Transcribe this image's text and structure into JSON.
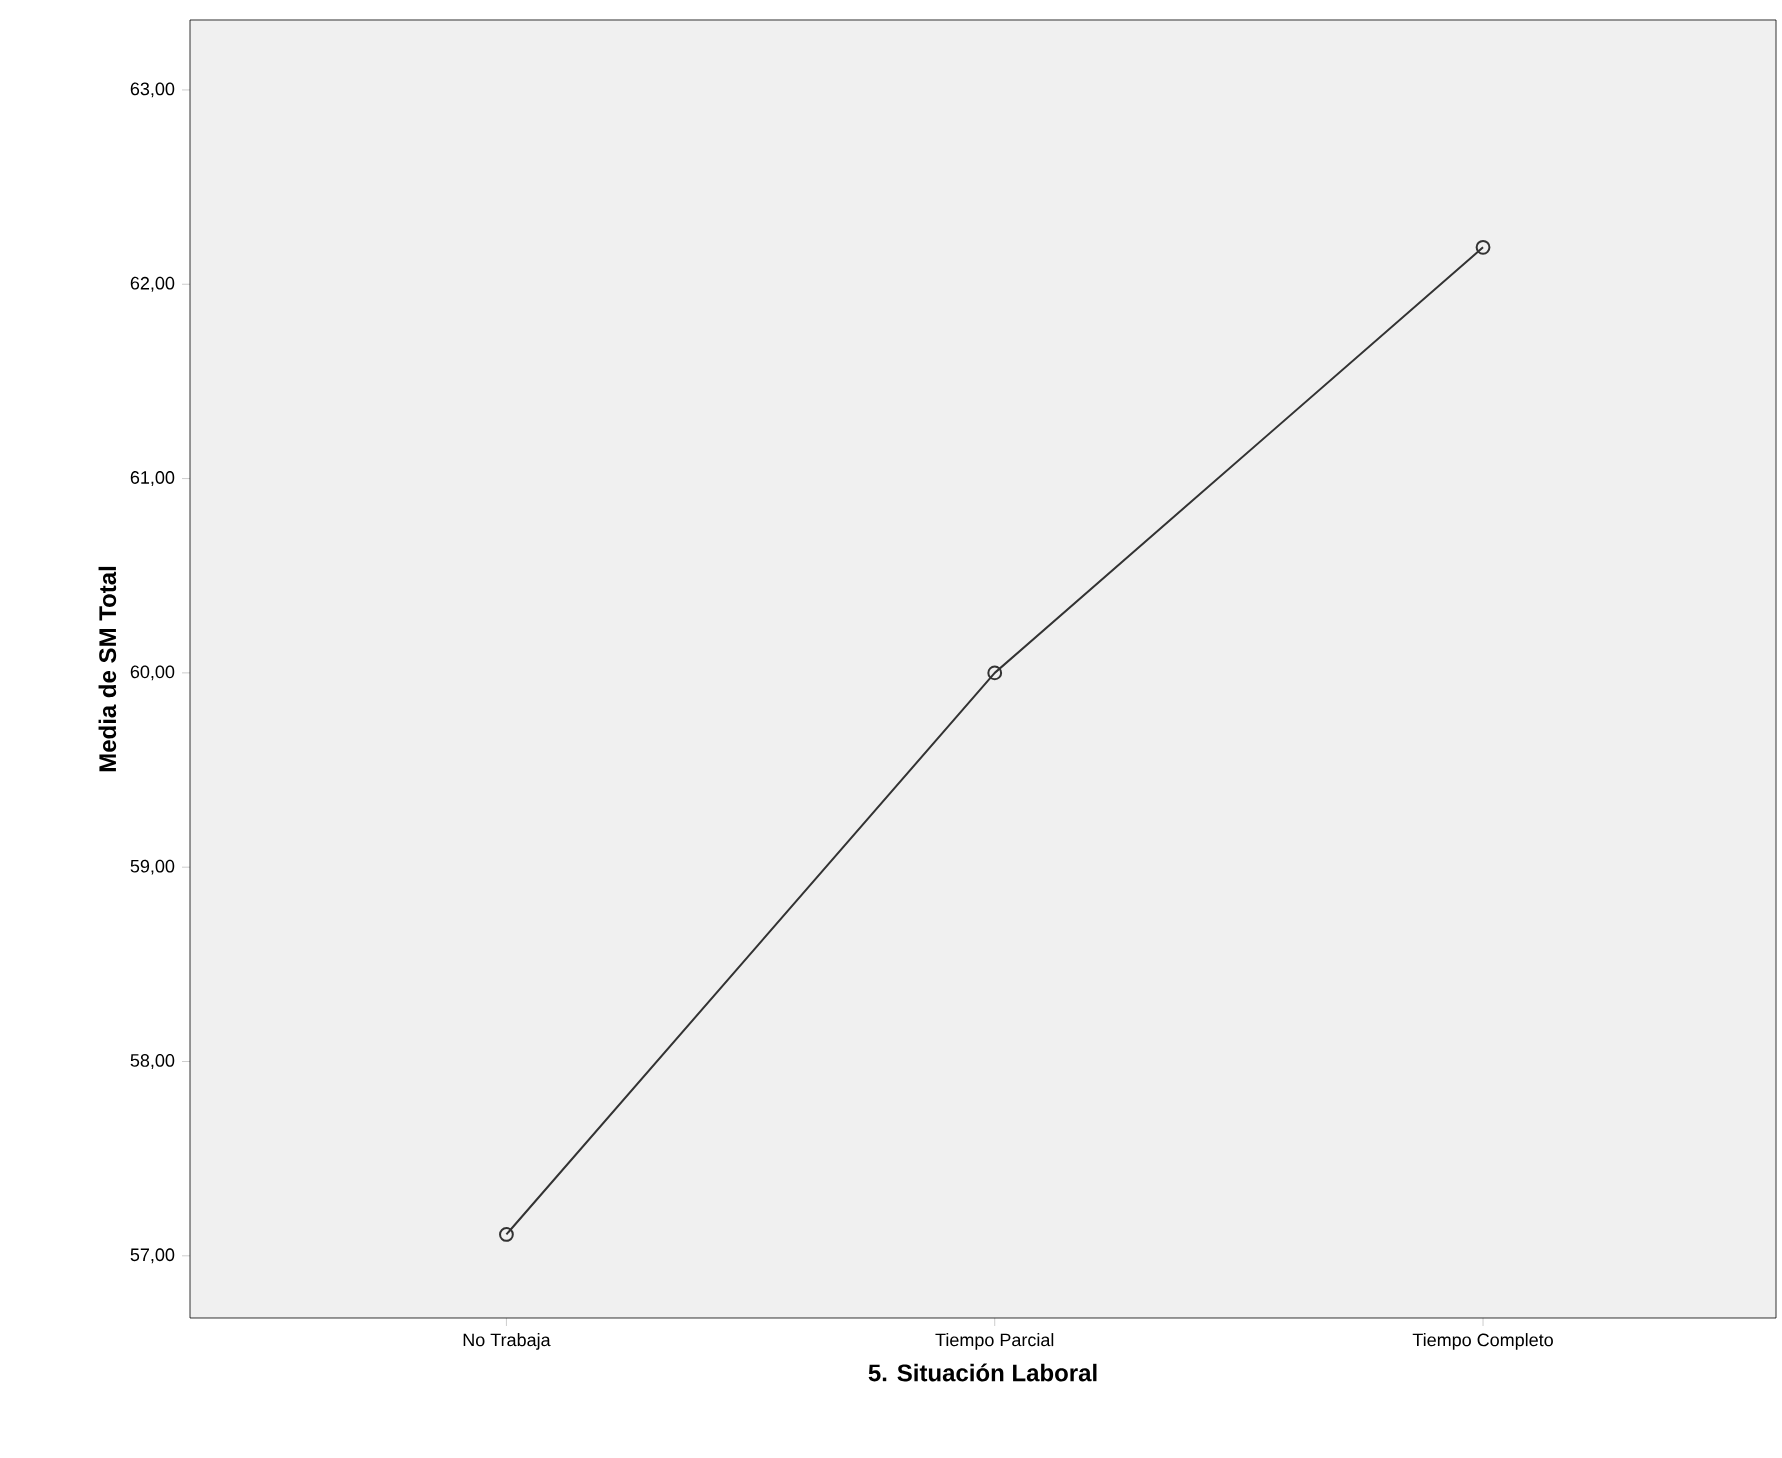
{
  "chart_data": {
    "type": "line",
    "xlabel": "5. Situación Laboral",
    "ylabel": "Media de SM Total",
    "categories": [
      "No Trabaja",
      "Tiempo Parcial",
      "Tiempo Completo"
    ],
    "series": [
      {
        "color": "#333333",
        "values": [
          57.11,
          60.0,
          62.19
        ]
      }
    ],
    "ylim": [
      56.68,
      63.36
    ],
    "yticks": [
      {
        "value": 57,
        "label": "57,00"
      },
      {
        "value": 58,
        "label": "58,00"
      },
      {
        "value": 59,
        "label": "59,00"
      },
      {
        "value": 60,
        "label": "60,00"
      },
      {
        "value": 61,
        "label": "61,00"
      },
      {
        "value": 62,
        "label": "62,00"
      },
      {
        "value": 63,
        "label": "63,00"
      }
    ],
    "grid": false,
    "marker": "circle",
    "line_style": "solid"
  }
}
